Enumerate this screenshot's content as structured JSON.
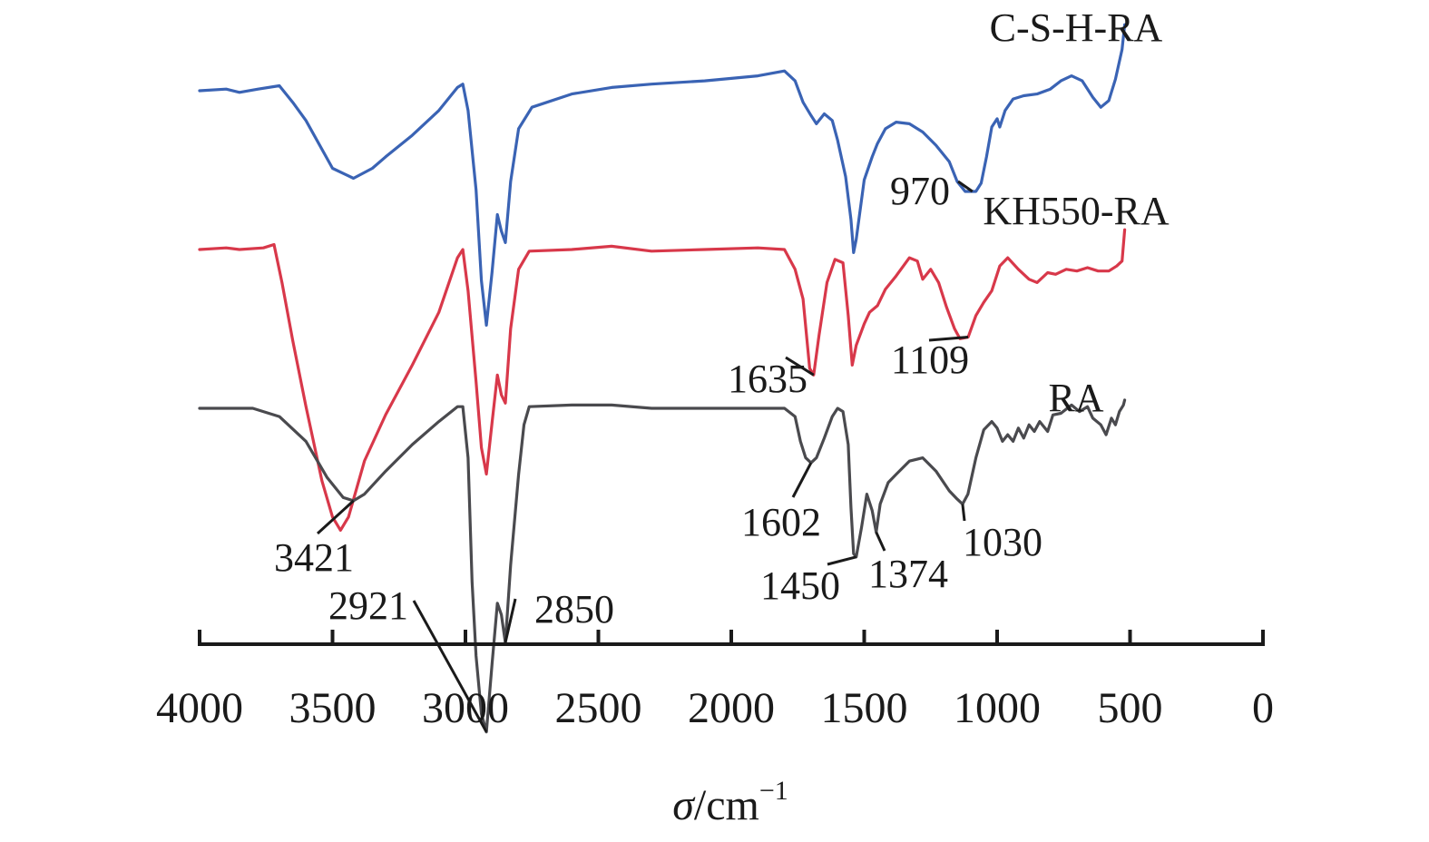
{
  "chart_data": {
    "type": "line",
    "title": "",
    "xlabel": {
      "symbol": "σ",
      "unit": "/cm",
      "exponent": "−1"
    },
    "ylabel": "",
    "xlim": [
      4000,
      0
    ],
    "x_reversed": true,
    "x_ticks": [
      "4000",
      "3500",
      "3000",
      "2500",
      "2000",
      "1500",
      "1000",
      "500",
      "0"
    ],
    "y_axis_shown": false,
    "grid": false,
    "series": [
      {
        "name": "C-S-H-RA",
        "color": "#3a63b4",
        "baseline": 0.25,
        "points": [
          [
            4000,
            0.0
          ],
          [
            3900,
            0.01
          ],
          [
            3850,
            -0.01
          ],
          [
            3780,
            0.01
          ],
          [
            3700,
            0.03
          ],
          [
            3650,
            -0.07
          ],
          [
            3600,
            -0.18
          ],
          [
            3500,
            -0.47
          ],
          [
            3421,
            -0.53
          ],
          [
            3350,
            -0.47
          ],
          [
            3300,
            -0.4
          ],
          [
            3200,
            -0.27
          ],
          [
            3100,
            -0.12
          ],
          [
            3030,
            0.02
          ],
          [
            3010,
            0.04
          ],
          [
            2990,
            -0.12
          ],
          [
            2960,
            -0.6
          ],
          [
            2940,
            -1.15
          ],
          [
            2921,
            -1.42
          ],
          [
            2900,
            -1.1
          ],
          [
            2880,
            -0.75
          ],
          [
            2865,
            -0.85
          ],
          [
            2850,
            -0.92
          ],
          [
            2830,
            -0.55
          ],
          [
            2800,
            -0.23
          ],
          [
            2750,
            -0.1
          ],
          [
            2600,
            -0.02
          ],
          [
            2450,
            0.02
          ],
          [
            2300,
            0.04
          ],
          [
            2100,
            0.06
          ],
          [
            1900,
            0.09
          ],
          [
            1800,
            0.12
          ],
          [
            1760,
            0.06
          ],
          [
            1730,
            -0.07
          ],
          [
            1700,
            -0.15
          ],
          [
            1680,
            -0.2
          ],
          [
            1650,
            -0.14
          ],
          [
            1620,
            -0.18
          ],
          [
            1600,
            -0.3
          ],
          [
            1570,
            -0.52
          ],
          [
            1550,
            -0.78
          ],
          [
            1540,
            -0.98
          ],
          [
            1530,
            -0.9
          ],
          [
            1500,
            -0.54
          ],
          [
            1470,
            -0.4
          ],
          [
            1450,
            -0.32
          ],
          [
            1420,
            -0.23
          ],
          [
            1380,
            -0.19
          ],
          [
            1330,
            -0.2
          ],
          [
            1280,
            -0.25
          ],
          [
            1230,
            -0.33
          ],
          [
            1180,
            -0.43
          ],
          [
            1150,
            -0.55
          ],
          [
            1120,
            -0.61
          ],
          [
            1080,
            -0.61
          ],
          [
            1060,
            -0.56
          ],
          [
            1040,
            -0.4
          ],
          [
            1020,
            -0.22
          ],
          [
            1000,
            -0.17
          ],
          [
            990,
            -0.22
          ],
          [
            970,
            -0.12
          ],
          [
            940,
            -0.05
          ],
          [
            900,
            -0.03
          ],
          [
            850,
            -0.02
          ],
          [
            800,
            0.01
          ],
          [
            760,
            0.06
          ],
          [
            720,
            0.09
          ],
          [
            680,
            0.06
          ],
          [
            640,
            -0.04
          ],
          [
            610,
            -0.1
          ],
          [
            580,
            -0.06
          ],
          [
            555,
            0.07
          ],
          [
            530,
            0.25
          ],
          [
            520,
            0.4
          ]
        ]
      },
      {
        "name": "KH550-RA",
        "color": "#d8384a",
        "baseline": 0.0,
        "points": [
          [
            4000,
            0.0
          ],
          [
            3900,
            0.01
          ],
          [
            3850,
            0.0
          ],
          [
            3760,
            0.01
          ],
          [
            3720,
            0.03
          ],
          [
            3690,
            -0.2
          ],
          [
            3650,
            -0.55
          ],
          [
            3600,
            -0.95
          ],
          [
            3540,
            -1.4
          ],
          [
            3500,
            -1.62
          ],
          [
            3470,
            -1.7
          ],
          [
            3440,
            -1.62
          ],
          [
            3380,
            -1.28
          ],
          [
            3300,
            -1.0
          ],
          [
            3200,
            -0.7
          ],
          [
            3100,
            -0.38
          ],
          [
            3030,
            -0.05
          ],
          [
            3010,
            0.0
          ],
          [
            2990,
            -0.25
          ],
          [
            2960,
            -0.8
          ],
          [
            2940,
            -1.2
          ],
          [
            2921,
            -1.36
          ],
          [
            2900,
            -1.05
          ],
          [
            2880,
            -0.76
          ],
          [
            2865,
            -0.88
          ],
          [
            2850,
            -0.93
          ],
          [
            2830,
            -0.48
          ],
          [
            2800,
            -0.12
          ],
          [
            2760,
            -0.01
          ],
          [
            2600,
            0.0
          ],
          [
            2450,
            0.02
          ],
          [
            2300,
            -0.01
          ],
          [
            2100,
            0.0
          ],
          [
            1900,
            0.01
          ],
          [
            1800,
            0.0
          ],
          [
            1760,
            -0.12
          ],
          [
            1730,
            -0.3
          ],
          [
            1705,
            -0.72
          ],
          [
            1690,
            -0.76
          ],
          [
            1670,
            -0.52
          ],
          [
            1640,
            -0.2
          ],
          [
            1610,
            -0.06
          ],
          [
            1580,
            -0.08
          ],
          [
            1560,
            -0.4
          ],
          [
            1545,
            -0.7
          ],
          [
            1530,
            -0.58
          ],
          [
            1500,
            -0.45
          ],
          [
            1480,
            -0.38
          ],
          [
            1450,
            -0.34
          ],
          [
            1420,
            -0.24
          ],
          [
            1380,
            -0.16
          ],
          [
            1330,
            -0.05
          ],
          [
            1300,
            -0.07
          ],
          [
            1280,
            -0.18
          ],
          [
            1250,
            -0.12
          ],
          [
            1220,
            -0.2
          ],
          [
            1190,
            -0.35
          ],
          [
            1160,
            -0.48
          ],
          [
            1140,
            -0.54
          ],
          [
            1109,
            -0.53
          ],
          [
            1080,
            -0.4
          ],
          [
            1050,
            -0.32
          ],
          [
            1020,
            -0.25
          ],
          [
            990,
            -0.1
          ],
          [
            960,
            -0.05
          ],
          [
            920,
            -0.12
          ],
          [
            880,
            -0.18
          ],
          [
            850,
            -0.2
          ],
          [
            810,
            -0.14
          ],
          [
            780,
            -0.15
          ],
          [
            740,
            -0.12
          ],
          [
            700,
            -0.13
          ],
          [
            660,
            -0.11
          ],
          [
            620,
            -0.13
          ],
          [
            580,
            -0.13
          ],
          [
            550,
            -0.1
          ],
          [
            530,
            -0.07
          ],
          [
            520,
            0.12
          ]
        ]
      },
      {
        "name": "RA",
        "color": "#4a4a4e",
        "baseline": -0.25,
        "points": [
          [
            4000,
            0.0
          ],
          [
            3900,
            0.0
          ],
          [
            3800,
            0.0
          ],
          [
            3700,
            -0.05
          ],
          [
            3600,
            -0.2
          ],
          [
            3520,
            -0.42
          ],
          [
            3460,
            -0.54
          ],
          [
            3421,
            -0.56
          ],
          [
            3380,
            -0.52
          ],
          [
            3300,
            -0.38
          ],
          [
            3200,
            -0.22
          ],
          [
            3100,
            -0.08
          ],
          [
            3030,
            0.01
          ],
          [
            3010,
            0.01
          ],
          [
            2990,
            -0.3
          ],
          [
            2975,
            -1.05
          ],
          [
            2960,
            -1.5
          ],
          [
            2940,
            -1.85
          ],
          [
            2921,
            -1.96
          ],
          [
            2900,
            -1.55
          ],
          [
            2880,
            -1.18
          ],
          [
            2865,
            -1.25
          ],
          [
            2850,
            -1.42
          ],
          [
            2830,
            -0.95
          ],
          [
            2800,
            -0.4
          ],
          [
            2780,
            -0.1
          ],
          [
            2760,
            0.01
          ],
          [
            2600,
            0.02
          ],
          [
            2450,
            0.02
          ],
          [
            2300,
            0.0
          ],
          [
            2100,
            0.0
          ],
          [
            1900,
            0.0
          ],
          [
            1800,
            0.0
          ],
          [
            1760,
            -0.05
          ],
          [
            1740,
            -0.2
          ],
          [
            1720,
            -0.3
          ],
          [
            1700,
            -0.33
          ],
          [
            1680,
            -0.3
          ],
          [
            1650,
            -0.18
          ],
          [
            1620,
            -0.05
          ],
          [
            1600,
            0.0
          ],
          [
            1580,
            -0.02
          ],
          [
            1560,
            -0.22
          ],
          [
            1550,
            -0.6
          ],
          [
            1540,
            -0.88
          ],
          [
            1530,
            -0.9
          ],
          [
            1510,
            -0.72
          ],
          [
            1490,
            -0.52
          ],
          [
            1470,
            -0.62
          ],
          [
            1455,
            -0.75
          ],
          [
            1440,
            -0.58
          ],
          [
            1410,
            -0.45
          ],
          [
            1380,
            -0.4
          ],
          [
            1330,
            -0.32
          ],
          [
            1280,
            -0.3
          ],
          [
            1230,
            -0.38
          ],
          [
            1180,
            -0.5
          ],
          [
            1150,
            -0.55
          ],
          [
            1130,
            -0.58
          ],
          [
            1110,
            -0.52
          ],
          [
            1080,
            -0.3
          ],
          [
            1050,
            -0.13
          ],
          [
            1020,
            -0.08
          ],
          [
            1000,
            -0.12
          ],
          [
            980,
            -0.2
          ],
          [
            960,
            -0.16
          ],
          [
            940,
            -0.2
          ],
          [
            920,
            -0.12
          ],
          [
            900,
            -0.18
          ],
          [
            880,
            -0.1
          ],
          [
            860,
            -0.14
          ],
          [
            840,
            -0.08
          ],
          [
            810,
            -0.14
          ],
          [
            790,
            -0.04
          ],
          [
            760,
            -0.03
          ],
          [
            720,
            0.02
          ],
          [
            690,
            -0.02
          ],
          [
            660,
            0.01
          ],
          [
            640,
            -0.06
          ],
          [
            610,
            -0.1
          ],
          [
            590,
            -0.16
          ],
          [
            570,
            -0.06
          ],
          [
            555,
            -0.1
          ],
          [
            540,
            -0.02
          ],
          [
            525,
            0.02
          ],
          [
            520,
            0.05
          ]
        ]
      }
    ],
    "annotations": [
      {
        "label": "970",
        "series": "C-S-H-RA",
        "x": 1093,
        "y": -0.61
      },
      {
        "label": "1635",
        "series": "KH550-RA",
        "x": 1690,
        "y": -0.76
      },
      {
        "label": "1109",
        "series": "KH550-RA",
        "x": 1109,
        "y": -0.53
      },
      {
        "label": "3421",
        "series": "RA",
        "x": 3421,
        "y": -0.56
      },
      {
        "label": "2921",
        "series": "RA",
        "x": 2921,
        "y": -1.96
      },
      {
        "label": "2850",
        "series": "RA",
        "x": 2850,
        "y": -1.42
      },
      {
        "label": "1602",
        "series": "RA",
        "x": 1700,
        "y": -0.33
      },
      {
        "label": "1450",
        "series": "RA",
        "x": 1530,
        "y": -0.9
      },
      {
        "label": "1374",
        "series": "RA",
        "x": 1455,
        "y": -0.75
      },
      {
        "label": "1030",
        "series": "RA",
        "x": 1130,
        "y": -0.58
      }
    ]
  }
}
